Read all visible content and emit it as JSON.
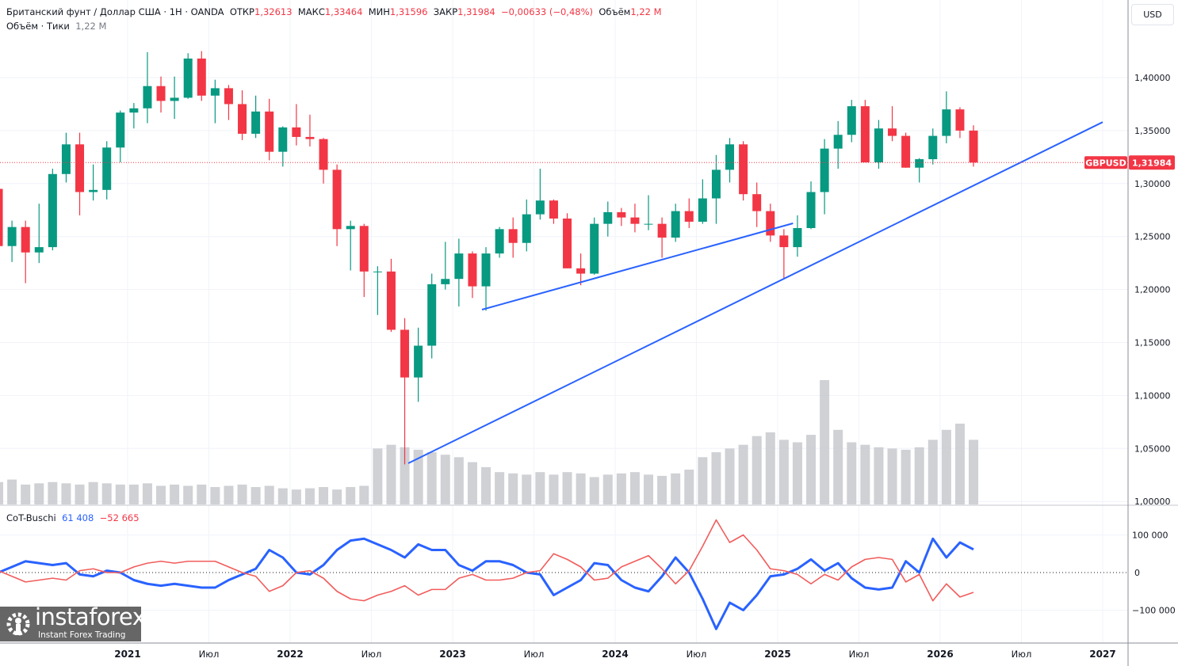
{
  "header": {
    "symbol_name": "Британский фунт / Доллар США · 1H · OANDA",
    "open_label": "ОТКР",
    "open": "1,32613",
    "high_label": "МАКС",
    "high": "1,33464",
    "low_label": "МИН",
    "low": "1,31596",
    "close_label": "ЗАКР",
    "close": "1,31984",
    "change": "−0,00633 (−0,48%)",
    "volume_label": "Объём",
    "volume": "1,22 M",
    "volume_ticks_label": "Объём · Тики",
    "volume_ticks": "1,22 M"
  },
  "currency_button": "USD",
  "price_tag": {
    "symbol": "GBPUSD",
    "value": "1,31984",
    "price": 1.31984,
    "color": "#f23645"
  },
  "indicator": {
    "name": "CoT-Buschi",
    "value_blue": "61 408",
    "value_red": "−52 665"
  },
  "logo": {
    "name": "instaforex",
    "tagline": "Instant Forex Trading"
  },
  "colors": {
    "up": "#089981",
    "down": "#f23645",
    "cot_blue": "#2962ff",
    "cot_red": "#f25c5c",
    "trendline": "#2962ff",
    "volume": "#c3c5cb"
  },
  "chart_data": [
    {
      "type": "candlestick",
      "title": "GBPUSD",
      "ylim": [
        0.99,
        1.445
      ],
      "y_ticks": [
        {
          "value": 1.4,
          "label": "1,40000"
        },
        {
          "value": 1.35,
          "label": "1,35000"
        },
        {
          "value": 1.3,
          "label": "1,30000"
        },
        {
          "value": 1.25,
          "label": "1,25000"
        },
        {
          "value": 1.2,
          "label": "1,20000"
        },
        {
          "value": 1.15,
          "label": "1,15000"
        },
        {
          "value": 1.1,
          "label": "1,10000"
        },
        {
          "value": 1.05,
          "label": "1,05000"
        },
        {
          "value": 1.0,
          "label": "1,00000"
        }
      ],
      "x_ticks": [
        {
          "date": 2021.0,
          "label": "2021"
        },
        {
          "date": 2021.5,
          "label": "Июл"
        },
        {
          "date": 2022.0,
          "label": "2022"
        },
        {
          "date": 2022.5,
          "label": "Июл"
        },
        {
          "date": 2023.0,
          "label": "2023"
        },
        {
          "date": 2023.5,
          "label": "Июл"
        },
        {
          "date": 2024.0,
          "label": "2024"
        },
        {
          "date": 2024.5,
          "label": "Июл"
        },
        {
          "date": 2025.0,
          "label": "2025"
        },
        {
          "date": 2025.5,
          "label": "Июл"
        },
        {
          "date": 2026.0,
          "label": "2026"
        },
        {
          "date": 2026.5,
          "label": "Июл"
        },
        {
          "date": 2027.0,
          "label": "2027"
        }
      ],
      "grid": true,
      "ohlc": [
        [
          "2020-03",
          1.295,
          1.32,
          1.141,
          1.241
        ],
        [
          "2020-04",
          1.241,
          1.265,
          1.226,
          1.259
        ],
        [
          "2020-05",
          1.259,
          1.265,
          1.206,
          1.235
        ],
        [
          "2020-06",
          1.235,
          1.281,
          1.225,
          1.24
        ],
        [
          "2020-07",
          1.24,
          1.314,
          1.237,
          1.309
        ],
        [
          "2020-08",
          1.309,
          1.348,
          1.301,
          1.337
        ],
        [
          "2020-09",
          1.337,
          1.348,
          1.27,
          1.292
        ],
        [
          "2020-10",
          1.292,
          1.318,
          1.284,
          1.294
        ],
        [
          "2020-11",
          1.294,
          1.34,
          1.285,
          1.334
        ],
        [
          "2020-12",
          1.334,
          1.369,
          1.32,
          1.367
        ],
        [
          "2021-01",
          1.367,
          1.376,
          1.352,
          1.371
        ],
        [
          "2021-02",
          1.371,
          1.424,
          1.357,
          1.392
        ],
        [
          "2021-03",
          1.392,
          1.401,
          1.367,
          1.378
        ],
        [
          "2021-04",
          1.378,
          1.401,
          1.361,
          1.381
        ],
        [
          "2021-05",
          1.381,
          1.423,
          1.38,
          1.418
        ],
        [
          "2021-06",
          1.418,
          1.425,
          1.378,
          1.383
        ],
        [
          "2021-07",
          1.383,
          1.398,
          1.357,
          1.39
        ],
        [
          "2021-08",
          1.39,
          1.393,
          1.36,
          1.375
        ],
        [
          "2021-09",
          1.375,
          1.388,
          1.341,
          1.347
        ],
        [
          "2021-10",
          1.347,
          1.383,
          1.343,
          1.368
        ],
        [
          "2021-11",
          1.368,
          1.38,
          1.322,
          1.33
        ],
        [
          "2021-12",
          1.33,
          1.354,
          1.316,
          1.353
        ],
        [
          "2022-01",
          1.353,
          1.375,
          1.336,
          1.344
        ],
        [
          "2022-02",
          1.344,
          1.365,
          1.335,
          1.342
        ],
        [
          "2022-03",
          1.342,
          1.343,
          1.3,
          1.313
        ],
        [
          "2022-04",
          1.313,
          1.318,
          1.241,
          1.257
        ],
        [
          "2022-05",
          1.257,
          1.265,
          1.218,
          1.26
        ],
        [
          "2022-06",
          1.26,
          1.262,
          1.193,
          1.217
        ],
        [
          "2022-07",
          1.217,
          1.222,
          1.176,
          1.217
        ],
        [
          "2022-08",
          1.217,
          1.229,
          1.16,
          1.162
        ],
        [
          "2022-09",
          1.162,
          1.173,
          1.035,
          1.117
        ],
        [
          "2022-10",
          1.117,
          1.164,
          1.094,
          1.147
        ],
        [
          "2022-11",
          1.147,
          1.215,
          1.135,
          1.205
        ],
        [
          "2022-12",
          1.205,
          1.245,
          1.2,
          1.21
        ],
        [
          "2023-01",
          1.21,
          1.248,
          1.184,
          1.234
        ],
        [
          "2023-02",
          1.234,
          1.236,
          1.192,
          1.203
        ],
        [
          "2023-03",
          1.203,
          1.24,
          1.18,
          1.234
        ],
        [
          "2023-04",
          1.234,
          1.259,
          1.23,
          1.257
        ],
        [
          "2023-05",
          1.257,
          1.268,
          1.23,
          1.244
        ],
        [
          "2023-06",
          1.244,
          1.285,
          1.236,
          1.271
        ],
        [
          "2023-07",
          1.271,
          1.314,
          1.266,
          1.284
        ],
        [
          "2023-08",
          1.284,
          1.285,
          1.262,
          1.267
        ],
        [
          "2023-09",
          1.267,
          1.272,
          1.22,
          1.22
        ],
        [
          "2023-10",
          1.22,
          1.234,
          1.204,
          1.215
        ],
        [
          "2023-11",
          1.215,
          1.268,
          1.214,
          1.262
        ],
        [
          "2023-12",
          1.262,
          1.283,
          1.25,
          1.273
        ],
        [
          "2024-01",
          1.273,
          1.277,
          1.26,
          1.268
        ],
        [
          "2024-02",
          1.268,
          1.281,
          1.254,
          1.262
        ],
        [
          "2024-03",
          1.262,
          1.289,
          1.256,
          1.262
        ],
        [
          "2024-04",
          1.262,
          1.268,
          1.23,
          1.249
        ],
        [
          "2024-05",
          1.249,
          1.281,
          1.245,
          1.274
        ],
        [
          "2024-06",
          1.274,
          1.286,
          1.258,
          1.264
        ],
        [
          "2024-07",
          1.264,
          1.304,
          1.262,
          1.286
        ],
        [
          "2024-08",
          1.286,
          1.327,
          1.262,
          1.313
        ],
        [
          "2024-09",
          1.313,
          1.343,
          1.301,
          1.337
        ],
        [
          "2024-10",
          1.337,
          1.34,
          1.284,
          1.29
        ],
        [
          "2024-11",
          1.29,
          1.301,
          1.259,
          1.274
        ],
        [
          "2024-12",
          1.274,
          1.281,
          1.245,
          1.251
        ],
        [
          "2025-01",
          1.251,
          1.257,
          1.21,
          1.24
        ],
        [
          "2025-02",
          1.24,
          1.27,
          1.231,
          1.258
        ],
        [
          "2025-03",
          1.258,
          1.302,
          1.257,
          1.292
        ],
        [
          "2025-04",
          1.292,
          1.342,
          1.271,
          1.333
        ],
        [
          "2025-05",
          1.333,
          1.359,
          1.314,
          1.346
        ],
        [
          "2025-06",
          1.346,
          1.379,
          1.339,
          1.373
        ],
        [
          "2025-07",
          1.373,
          1.379,
          1.32,
          1.32
        ],
        [
          "2025-08",
          1.32,
          1.36,
          1.314,
          1.352
        ],
        [
          "2025-09",
          1.352,
          1.373,
          1.34,
          1.345
        ],
        [
          "2025-10",
          1.345,
          1.348,
          1.315,
          1.315
        ],
        [
          "2025-11",
          1.315,
          1.324,
          1.301,
          1.323
        ],
        [
          "2025-12",
          1.323,
          1.352,
          1.318,
          1.345
        ],
        [
          "2026-01",
          1.345,
          1.387,
          1.338,
          1.37
        ],
        [
          "2026-02",
          1.37,
          1.372,
          1.343,
          1.35
        ],
        [
          "2026-03",
          1.35,
          1.355,
          1.316,
          1.31984
        ]
      ],
      "volume_relative": [
        18,
        20,
        16,
        17,
        18,
        17,
        16,
        18,
        17,
        16,
        16,
        17,
        15,
        16,
        15,
        16,
        14,
        15,
        16,
        14,
        15,
        13,
        12,
        13,
        14,
        12,
        14,
        15,
        45,
        48,
        46,
        44,
        42,
        40,
        38,
        34,
        30,
        26,
        25,
        24,
        26,
        24,
        26,
        25,
        22,
        24,
        25,
        26,
        24,
        23,
        25,
        28,
        38,
        42,
        45,
        48,
        55,
        58,
        52,
        50,
        56,
        100,
        60,
        50,
        48,
        46,
        45,
        44,
        46,
        52,
        60,
        65,
        52
      ],
      "trendlines": [
        {
          "from": {
            "date": "2023-03-06",
            "price": 1.181
          },
          "to": {
            "date": "2025-02-05",
            "price": 1.2625
          }
        },
        {
          "from": {
            "date": "2022-09-23",
            "price": 1.036
          },
          "to": {
            "date": "2027-01-01",
            "price": 1.358
          }
        }
      ]
    },
    {
      "type": "line",
      "title": "CoT-Buschi",
      "ylim": [
        -160000,
        160000
      ],
      "y_ticks": [
        {
          "value": 100000,
          "label": "100 000"
        },
        {
          "value": 0,
          "label": "0"
        },
        {
          "value": -100000,
          "label": "−100 000"
        }
      ],
      "series": [
        {
          "color": "#2962ff",
          "values": [
            0,
            15000,
            30000,
            25000,
            20000,
            25000,
            -5000,
            -10000,
            5000,
            0,
            -20000,
            -30000,
            -35000,
            -30000,
            -35000,
            -40000,
            -40000,
            -20000,
            -5000,
            10000,
            60000,
            40000,
            0,
            -5000,
            20000,
            60000,
            85000,
            90000,
            75000,
            60000,
            40000,
            75000,
            60000,
            60000,
            20000,
            5000,
            30000,
            30000,
            20000,
            0,
            -5000,
            -60000,
            -40000,
            -20000,
            25000,
            20000,
            -20000,
            -40000,
            -50000,
            -10000,
            40000,
            0,
            -70000,
            -150000,
            -80000,
            -100000,
            -60000,
            -10000,
            -5000,
            10000,
            35000,
            5000,
            25000,
            -15000,
            -40000,
            -45000,
            -40000,
            30000,
            0,
            90000,
            40000,
            80000,
            61408
          ]
        },
        {
          "color": "#f25c5c",
          "values": [
            5000,
            -10000,
            -25000,
            -20000,
            -15000,
            -20000,
            5000,
            10000,
            0,
            0,
            15000,
            25000,
            30000,
            25000,
            30000,
            30000,
            30000,
            15000,
            0,
            -10000,
            -50000,
            -35000,
            0,
            5000,
            -15000,
            -50000,
            -70000,
            -75000,
            -60000,
            -50000,
            -35000,
            -60000,
            -45000,
            -45000,
            -15000,
            -5000,
            -20000,
            -20000,
            -15000,
            0,
            5000,
            50000,
            35000,
            15000,
            -20000,
            -15000,
            15000,
            30000,
            45000,
            10000,
            -30000,
            5000,
            70000,
            140000,
            80000,
            100000,
            60000,
            10000,
            5000,
            -5000,
            -30000,
            -5000,
            -20000,
            15000,
            35000,
            40000,
            35000,
            -25000,
            -5000,
            -75000,
            -30000,
            -65000,
            -52665
          ]
        }
      ]
    }
  ]
}
